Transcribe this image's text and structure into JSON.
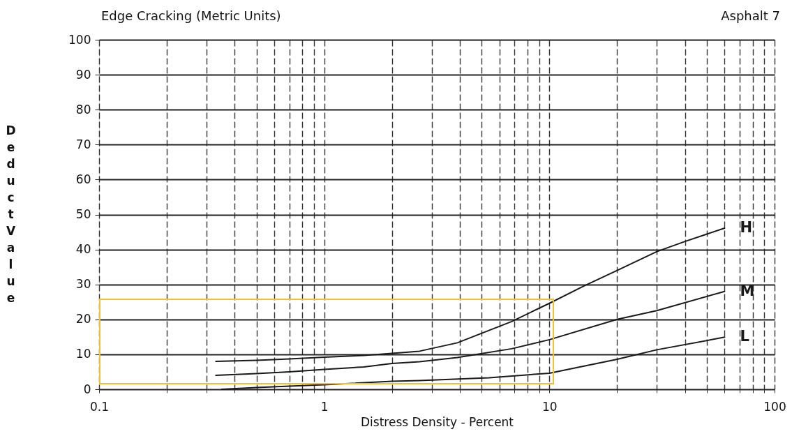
{
  "chart_data": {
    "type": "line",
    "title": "Edge Cracking (Metric Units)",
    "xlabel": "Distress Density - Percent",
    "ylabel": "Deduct Value",
    "annotations": [
      "Asphalt 7"
    ],
    "log": "x",
    "grid": true,
    "xlim": [
      0.1,
      100
    ],
    "ylim": [
      0,
      100
    ],
    "xticks": [
      0.1,
      {
        "value": 0.2,
        "label": null
      },
      {
        "value": 0.3,
        "label": null
      },
      {
        "value": 0.4,
        "label": null
      },
      {
        "value": 0.5,
        "label": null
      },
      {
        "value": 0.6,
        "label": null
      },
      {
        "value": 0.7,
        "label": null
      },
      {
        "value": 0.8,
        "label": null
      },
      {
        "value": 0.9,
        "label": null
      },
      1,
      {
        "value": 2,
        "label": null
      },
      {
        "value": 3,
        "label": null
      },
      {
        "value": 4,
        "label": null
      },
      {
        "value": 5,
        "label": null
      },
      {
        "value": 6,
        "label": null
      },
      {
        "value": 7,
        "label": null
      },
      {
        "value": 8,
        "label": null
      },
      {
        "value": 9,
        "label": null
      },
      10,
      {
        "value": 20,
        "label": null
      },
      {
        "value": 30,
        "label": null
      },
      {
        "value": 40,
        "label": null
      },
      {
        "value": 50,
        "label": null
      },
      {
        "value": 60,
        "label": null
      },
      {
        "value": 70,
        "label": null
      },
      {
        "value": 80,
        "label": null
      },
      {
        "value": 90,
        "label": null
      },
      100
    ],
    "yticks": [
      0,
      10,
      20,
      30,
      40,
      50,
      60,
      70,
      80,
      90,
      100
    ],
    "series": [
      {
        "name": "H",
        "color": "#1a1a1a",
        "x": [
          0.33,
          0.5,
          0.7,
          1,
          1.5,
          2,
          2.65,
          3.9,
          6.8,
          10,
          14.3,
          20,
          30,
          40,
          60
        ],
        "values": [
          8,
          8.3,
          8.7,
          9.2,
          9.7,
          10.3,
          10.9,
          13.3,
          19.4,
          24.6,
          29.6,
          34,
          39.4,
          42.3,
          46.1
        ]
      },
      {
        "name": "M",
        "color": "#1a1a1a",
        "x": [
          0.33,
          0.5,
          0.7,
          1,
          1.5,
          2,
          2.65,
          3.9,
          6.8,
          10,
          20,
          30,
          60
        ],
        "values": [
          4,
          4.5,
          5,
          5.7,
          6.4,
          7.4,
          7.9,
          9.1,
          11.6,
          14.2,
          20,
          22.5,
          28
        ]
      },
      {
        "name": "L",
        "color": "#1a1a1a",
        "x": [
          0.35,
          0.5,
          0.7,
          1,
          2,
          2.65,
          5.4,
          10,
          20,
          30,
          60
        ],
        "values": [
          0,
          0.5,
          0.9,
          1.3,
          2.3,
          2.5,
          3.3,
          4.6,
          8.6,
          11.3,
          14.9
        ]
      }
    ]
  }
}
